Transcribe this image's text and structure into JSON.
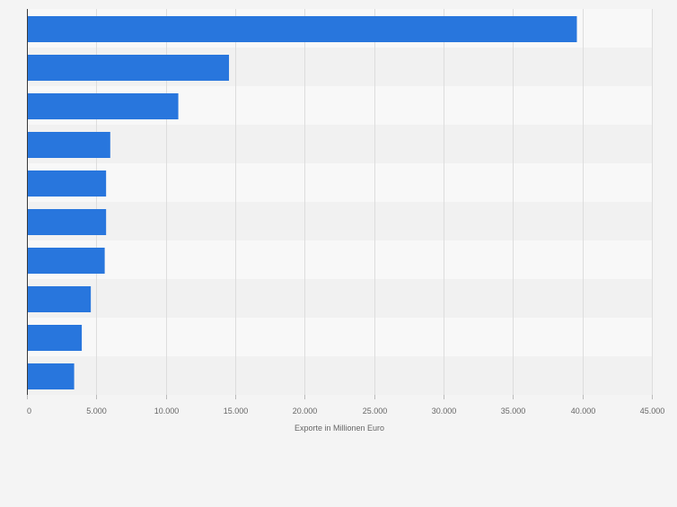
{
  "chart_data": {
    "type": "bar",
    "orientation": "horizontal",
    "categories": [
      "",
      "",
      "",
      "",
      "",
      "",
      "",
      "",
      "",
      ""
    ],
    "values": [
      39600,
      14550,
      10900,
      6000,
      5700,
      5700,
      5600,
      4600,
      3950,
      3400
    ],
    "title": "",
    "xlabel": "Exporte in Millionen Euro",
    "ylabel": "",
    "xlim": [
      0,
      45000
    ],
    "x_ticks": [
      0,
      5000,
      10000,
      15000,
      20000,
      25000,
      30000,
      35000,
      40000,
      45000
    ],
    "x_tick_labels": [
      "0",
      "5.000",
      "10.000",
      "15.000",
      "20.000",
      "25.000",
      "30.000",
      "35.000",
      "40.000",
      "45.000"
    ],
    "grid": "vertical",
    "legend": "none",
    "colors": {
      "bar": "#2876dd",
      "band_light": "#f8f8f8",
      "band_dark": "#f1f1f1",
      "grid": "#dddddd",
      "axis": "#3a3a3a",
      "tick_text": "#666666",
      "background": "#f4f4f4"
    }
  }
}
